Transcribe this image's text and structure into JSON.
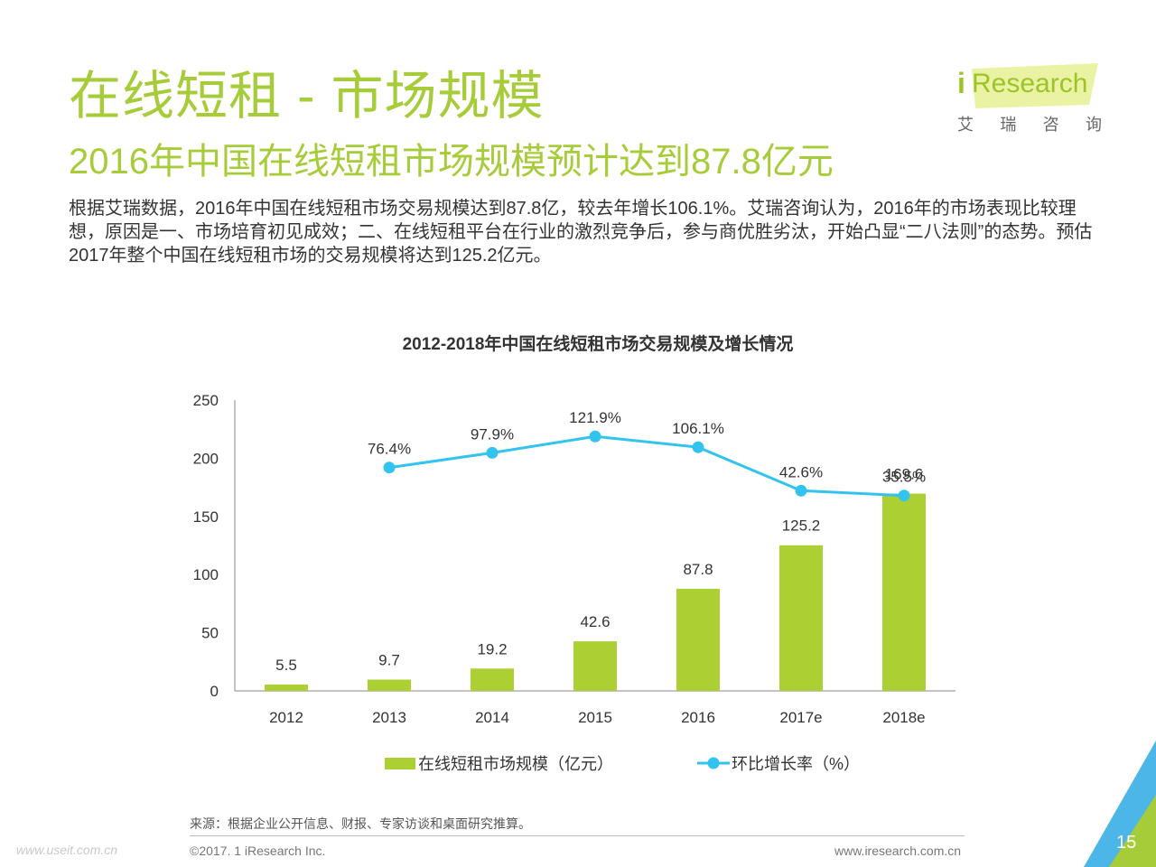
{
  "slide": {
    "title": "在线短租 - 市场规模",
    "subtitle": "2016年中国在线短租市场规模预计达到87.8亿元",
    "description": "根据艾瑞数据，2016年中国在线短租市场交易规模达到87.8亿，较去年增长106.1%。艾瑞咨询认为，2016年的市场表现比较理想，原因是一、市场培育初见成效；二、在线短租平台在行业的激烈竞争后，参与商优胜劣汰，开始凸显“二八法则”的态势。预估2017年整个中国在线短租市场的交易规模将达到125.2亿元。",
    "source": "来源：根据企业公开信息、财报、专家访谈和桌面研究推算。",
    "copyright": "©2017. 1 iResearch Inc.",
    "website": "www.iresearch.com.cn",
    "watermark": "www.useit.com.cn",
    "page_number": "15"
  },
  "logo": {
    "i": "i",
    "word": "Research",
    "cn": [
      "艾",
      "瑞",
      "咨",
      "询"
    ]
  },
  "colors": {
    "accent_green": "#a7cc3a",
    "bar_green": "#acd033",
    "line_blue": "#33c3ef",
    "corner_blue": "#4cb6e8",
    "corner_green": "#a7cc3a"
  },
  "chart_data": {
    "type": "bar",
    "title": "2012-2018年中国在线短租市场交易规模及增长情况",
    "categories": [
      "2012",
      "2013",
      "2014",
      "2015",
      "2016",
      "2017e",
      "2018e"
    ],
    "ylim": [
      0,
      250
    ],
    "yticks": [
      "0",
      "50",
      "100",
      "150",
      "200",
      "250"
    ],
    "series": [
      {
        "name": "在线短租市场规模（亿元）",
        "kind": "bar",
        "values": [
          5.5,
          9.7,
          19.2,
          42.6,
          87.8,
          125.2,
          169.6
        ],
        "labels": [
          "5.5",
          "9.7",
          "19.2",
          "42.6",
          "87.8",
          "125.2",
          "169.6"
        ]
      },
      {
        "name": "环比增长率（%）",
        "kind": "line",
        "values": [
          null,
          76.4,
          97.9,
          121.9,
          106.1,
          42.6,
          35.5
        ],
        "labels": [
          "",
          "76.4%",
          "97.9%",
          "121.9%",
          "106.1%",
          "42.6%",
          "35.5%"
        ]
      }
    ],
    "legend_position": "bottom",
    "grid": false
  }
}
